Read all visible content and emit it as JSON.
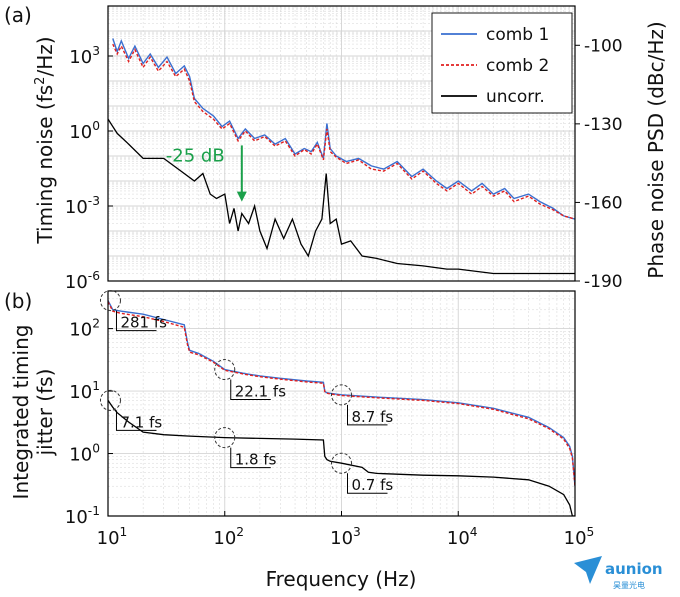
{
  "panel_a_label": "(a)",
  "panel_b_label": "(b)",
  "watermark": "aunion",
  "watermark_sub": "昊量光电",
  "colors": {
    "comb1": "#3a6fd0",
    "comb2": "#e02020",
    "uncorr": "#000000",
    "annotation": "#1aa04a",
    "grid": "#d4d4d4"
  },
  "chart_data": [
    {
      "type": "line",
      "panel": "(a)",
      "xscale": "log",
      "yscale": "log",
      "xlim": [
        10,
        100000
      ],
      "ylim": [
        1e-06,
        100000.0
      ],
      "ylabel_base": "Timing noise (fs",
      "ylabel_sup": "2",
      "ylabel_tail": "/Hz)",
      "y2label": "Phase noise PSD (dBc/Hz)",
      "y2lim": [
        -190,
        -85
      ],
      "yticks": [
        {
          "value": 1000,
          "base": "10",
          "exp": "3"
        },
        {
          "value": 1,
          "base": "10",
          "exp": "0"
        },
        {
          "value": 0.001,
          "base": "10",
          "exp": "-3"
        },
        {
          "value": 1e-06,
          "base": "10",
          "exp": "-6"
        }
      ],
      "y2ticks": [
        "-100",
        "-130",
        "-160",
        "-190"
      ],
      "y2tick_values": [
        -100,
        -130,
        -160,
        -190
      ],
      "legend_position": "top-right",
      "legend": [
        "comb 1",
        "comb 2",
        "uncorr."
      ],
      "annotation": {
        "text": "-25 dB",
        "x": 140,
        "y": 0.035,
        "arrow_to": 0.0015
      },
      "series": [
        {
          "name": "comb 1",
          "style": "solid",
          "x": [
            11,
            12,
            13,
            15,
            17,
            20,
            23,
            27,
            32,
            38,
            45,
            50,
            55,
            65,
            80,
            95,
            110,
            130,
            150,
            180,
            220,
            270,
            330,
            400,
            480,
            550,
            620,
            700,
            750,
            800,
            900,
            1100,
            1400,
            1800,
            2300,
            3000,
            4000,
            5000,
            6500,
            8000,
            10000,
            13000,
            16000,
            20000,
            25000,
            30000,
            40000,
            50000,
            65000,
            80000,
            100000
          ],
          "y": [
            5000,
            1500,
            4000,
            800,
            2500,
            500,
            1200,
            350,
            900,
            200,
            400,
            150,
            20,
            8,
            4,
            1.5,
            2.5,
            0.5,
            1.2,
            0.5,
            0.7,
            0.3,
            0.5,
            0.12,
            0.2,
            0.15,
            0.35,
            0.08,
            2,
            0.2,
            0.1,
            0.06,
            0.08,
            0.04,
            0.03,
            0.06,
            0.015,
            0.03,
            0.01,
            0.005,
            0.01,
            0.004,
            0.008,
            0.003,
            0.005,
            0.002,
            0.003,
            0.0015,
            0.0008,
            0.0004,
            0.0003
          ]
        },
        {
          "name": "comb 2",
          "style": "dotted",
          "x": [
            11,
            12,
            13,
            15,
            17,
            20,
            23,
            27,
            32,
            38,
            45,
            50,
            55,
            65,
            80,
            95,
            110,
            130,
            150,
            180,
            220,
            270,
            330,
            400,
            480,
            550,
            620,
            700,
            750,
            800,
            900,
            1100,
            1400,
            1800,
            2300,
            3000,
            4000,
            5000,
            6500,
            8000,
            10000,
            13000,
            16000,
            20000,
            25000,
            30000,
            40000,
            50000,
            65000,
            80000,
            100000
          ],
          "y": [
            3000,
            1200,
            2500,
            600,
            1800,
            350,
            900,
            250,
            600,
            150,
            300,
            100,
            15,
            6,
            3,
            1.2,
            2,
            0.4,
            1,
            0.4,
            0.6,
            0.25,
            0.4,
            0.1,
            0.18,
            0.12,
            0.3,
            0.07,
            1.2,
            0.15,
            0.09,
            0.05,
            0.07,
            0.03,
            0.025,
            0.05,
            0.012,
            0.025,
            0.008,
            0.004,
            0.008,
            0.003,
            0.006,
            0.0025,
            0.004,
            0.0015,
            0.0025,
            0.0012,
            0.0007,
            0.0004,
            0.0003
          ]
        },
        {
          "name": "uncorr.",
          "style": "solid",
          "x": [
            10,
            12,
            15,
            20,
            30,
            40,
            55,
            65,
            75,
            85,
            100,
            110,
            120,
            130,
            140,
            160,
            180,
            200,
            230,
            270,
            320,
            380,
            450,
            520,
            600,
            680,
            740,
            800,
            900,
            1000,
            1200,
            1500,
            2000,
            3000,
            5000,
            8000,
            10000,
            20000,
            50000,
            100000
          ],
          "y": [
            3,
            0.8,
            0.3,
            0.08,
            0.08,
            0.03,
            0.01,
            0.02,
            0.003,
            0.002,
            0.003,
            0.0002,
            0.0008,
            0.0001,
            0.0005,
            0.0002,
            0.001,
            0.0001,
            2e-05,
            0.0003,
            5e-05,
            0.0003,
            3e-05,
            1e-05,
            0.0001,
            0.0003,
            0.02,
            0.0002,
            0.0003,
            3e-05,
            4e-05,
            1e-05,
            8e-06,
            5e-06,
            4e-06,
            3e-06,
            3e-06,
            2e-06,
            2e-06,
            2e-06
          ]
        }
      ]
    },
    {
      "type": "line",
      "panel": "(b)",
      "xscale": "log",
      "yscale": "log",
      "xlim": [
        10,
        100000
      ],
      "ylim": [
        0.1,
        400
      ],
      "xlabel": "Frequency (Hz)",
      "ylabel_line1": "Integrated timing",
      "ylabel_line2": "jitter (fs)",
      "xticks": [
        {
          "value": 10,
          "base": "10",
          "exp": "1"
        },
        {
          "value": 100,
          "base": "10",
          "exp": "2"
        },
        {
          "value": 1000,
          "base": "10",
          "exp": "3"
        },
        {
          "value": 10000,
          "base": "10",
          "exp": "4"
        },
        {
          "value": 100000,
          "base": "10",
          "exp": "5"
        }
      ],
      "yticks": [
        {
          "value": 100,
          "base": "10",
          "exp": "2"
        },
        {
          "value": 10,
          "base": "10",
          "exp": "1"
        },
        {
          "value": 1,
          "base": "10",
          "exp": "0"
        },
        {
          "value": 0.1,
          "base": "10",
          "exp": "-1"
        }
      ],
      "annotations": [
        {
          "text": "281 fs",
          "x": 10.5,
          "y": 281
        },
        {
          "text": "7.1 fs",
          "x": 10.5,
          "y": 7.1
        },
        {
          "text": "22.1 fs",
          "x": 100,
          "y": 22.1
        },
        {
          "text": "1.8 fs",
          "x": 100,
          "y": 1.8
        },
        {
          "text": "8.7 fs",
          "x": 1000,
          "y": 8.7
        },
        {
          "text": "0.7 fs",
          "x": 1000,
          "y": 0.7
        }
      ],
      "series": [
        {
          "name": "comb 1",
          "style": "solid",
          "x": [
            10,
            11,
            13,
            20,
            30,
            45,
            48,
            50,
            60,
            80,
            100,
            150,
            200,
            300,
            500,
            700,
            720,
            740,
            800,
            1000,
            2000,
            5000,
            10000,
            20000,
            40000,
            60000,
            80000,
            90000,
            95000,
            100000
          ],
          "y": [
            281,
            200,
            190,
            170,
            140,
            115,
            60,
            45,
            40,
            30,
            22.1,
            19,
            17.5,
            16,
            14.5,
            13.8,
            10,
            9.5,
            9.2,
            8.7,
            8,
            7.3,
            6.5,
            5.3,
            3.8,
            2.6,
            1.8,
            1.3,
            0.9,
            0.3
          ]
        },
        {
          "name": "comb 2",
          "style": "dotted",
          "x": [
            10,
            11,
            13,
            20,
            30,
            45,
            48,
            50,
            60,
            80,
            100,
            150,
            200,
            300,
            500,
            700,
            720,
            740,
            800,
            1000,
            2000,
            5000,
            10000,
            20000,
            40000,
            60000,
            80000,
            90000,
            95000,
            100000
          ],
          "y": [
            270,
            190,
            175,
            155,
            130,
            105,
            55,
            42,
            38,
            29,
            21.5,
            18.5,
            17,
            15.5,
            14,
            13.3,
            9.8,
            9.3,
            9,
            8.5,
            7.8,
            7.1,
            6.3,
            5.1,
            3.6,
            2.5,
            1.7,
            1.2,
            0.85,
            0.3
          ]
        },
        {
          "name": "uncorr.",
          "style": "solid",
          "x": [
            10,
            11,
            12,
            15,
            20,
            30,
            50,
            100,
            200,
            400,
            700,
            720,
            750,
            800,
            1000,
            1500,
            1700,
            2000,
            5000,
            10000,
            20000,
            40000,
            60000,
            80000,
            90000,
            95000,
            100000
          ],
          "y": [
            7.1,
            5.5,
            4.5,
            3.2,
            2.2,
            2,
            1.9,
            1.8,
            1.75,
            1.7,
            1.65,
            0.9,
            0.8,
            0.75,
            0.7,
            0.6,
            0.5,
            0.48,
            0.45,
            0.44,
            0.42,
            0.38,
            0.3,
            0.22,
            0.15,
            0.1,
            0.1
          ]
        }
      ]
    }
  ]
}
